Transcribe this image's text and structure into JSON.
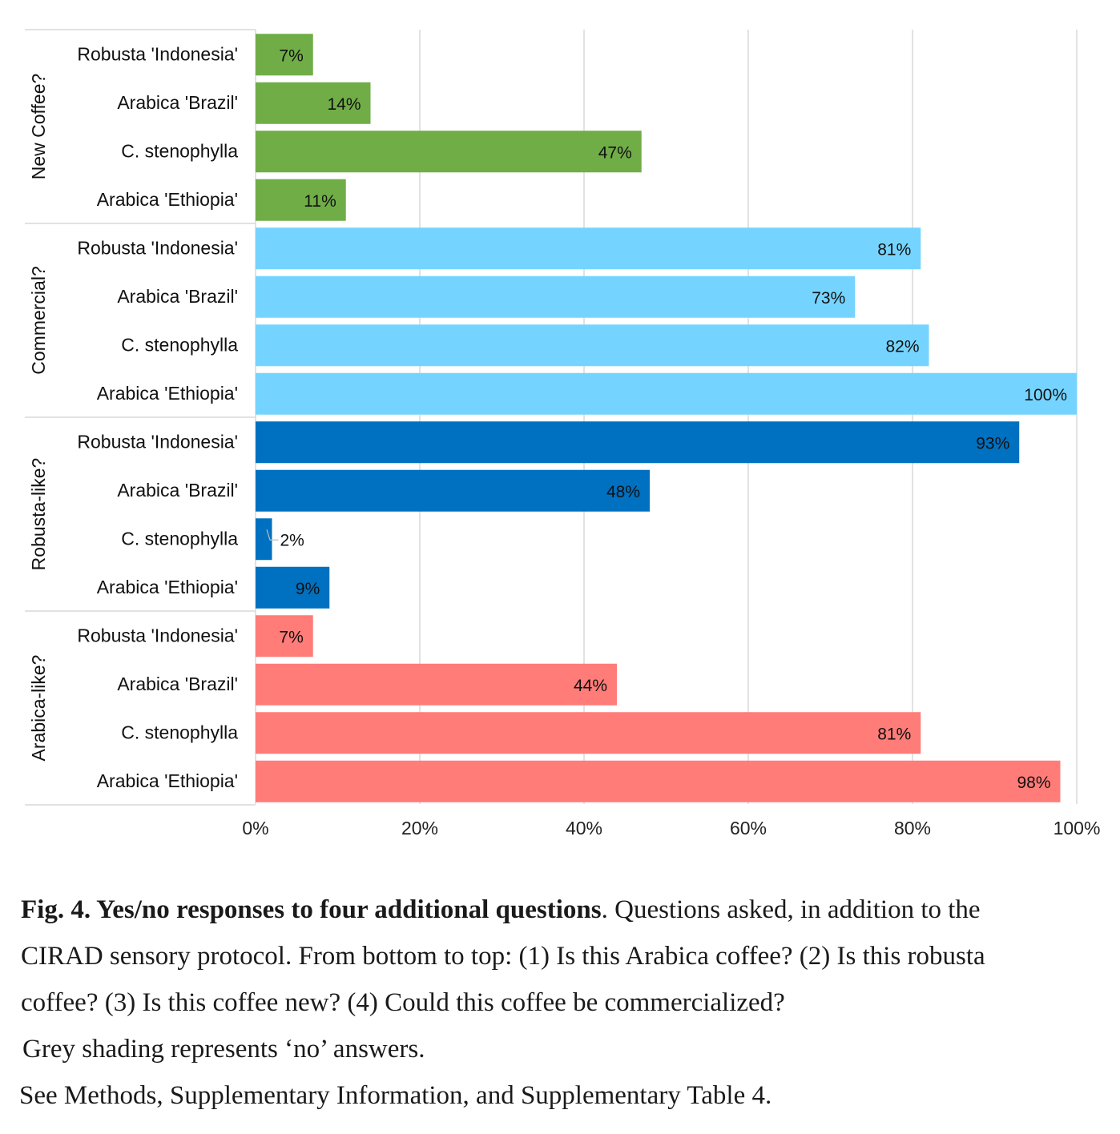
{
  "chart_data": {
    "type": "bar",
    "orientation": "horizontal",
    "x_ticks": [
      "0%",
      "20%",
      "40%",
      "60%",
      "80%",
      "100%"
    ],
    "xlim": [
      0,
      100
    ],
    "groups": [
      {
        "name": "New Coffee?",
        "color": "#70AD47",
        "categories": [
          "Robusta 'Indonesia'",
          "Arabica 'Brazil'",
          "C. stenophylla",
          "Arabica 'Ethiopia'"
        ],
        "values": [
          7,
          14,
          47,
          11
        ],
        "labels": [
          "7%",
          "14%",
          "47%",
          "11%"
        ]
      },
      {
        "name": "Commercial?",
        "color": "#75D4FF",
        "categories": [
          "Robusta 'Indonesia'",
          "Arabica 'Brazil'",
          "C. stenophylla",
          "Arabica 'Ethiopia'"
        ],
        "values": [
          81,
          73,
          82,
          100
        ],
        "labels": [
          "81%",
          "73%",
          "82%",
          "100%"
        ]
      },
      {
        "name": "Robusta-like?",
        "color": "#0070C0",
        "categories": [
          "Robusta 'Indonesia'",
          "Arabica 'Brazil'",
          "C. stenophylla",
          "Arabica 'Ethiopia'"
        ],
        "values": [
          93,
          48,
          2,
          9
        ],
        "labels": [
          "93%",
          "48%",
          "2%",
          "9%"
        ]
      },
      {
        "name": "Arabica-like?",
        "color": "#FF7C78",
        "categories": [
          "Robusta 'Indonesia'",
          "Arabica 'Brazil'",
          "C. stenophylla",
          "Arabica 'Ethiopia'"
        ],
        "values": [
          7,
          44,
          81,
          98
        ],
        "labels": [
          "7%",
          "44%",
          "81%",
          "98%"
        ]
      }
    ]
  },
  "caption": {
    "bold": "Fig. 4. Yes/no responses to four additional questions",
    "line1_rest": ". Questions asked, in addition to the",
    "line2": "CIRAD sensory protocol. From bottom to top: (1) Is this Arabica coffee? (2) Is this robusta",
    "line3": "coffee? (3) Is this coffee new? (4) Could this coffee be commercialized?",
    "line4": "Grey shading  represents ‘no’ answers.",
    "line5": "See Methods, Supplementary Information, and Supplementary Table  4."
  }
}
